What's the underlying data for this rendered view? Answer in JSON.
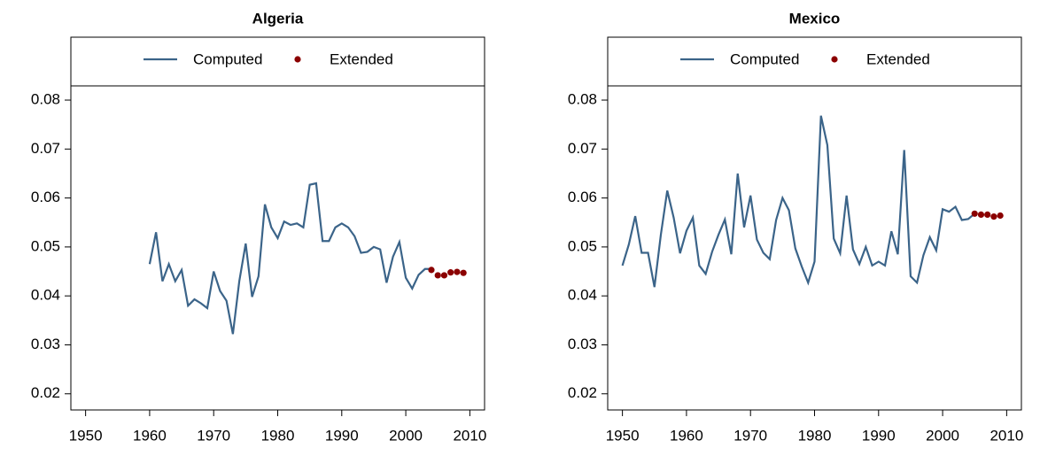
{
  "chart_data": [
    {
      "type": "line",
      "title": "Algeria",
      "x": [
        1960,
        1961,
        1962,
        1963,
        1964,
        1965,
        1966,
        1967,
        1968,
        1969,
        1970,
        1971,
        1972,
        1973,
        1974,
        1975,
        1976,
        1977,
        1978,
        1979,
        1980,
        1981,
        1982,
        1983,
        1984,
        1985,
        1986,
        1987,
        1988,
        1989,
        1990,
        1991,
        1992,
        1993,
        1994,
        1995,
        1996,
        1997,
        1998,
        1999,
        2000,
        2001,
        2002,
        2003,
        2004
      ],
      "series": [
        {
          "name": "Computed",
          "color": "#3b6489",
          "values": [
            0.0465,
            0.053,
            0.043,
            0.0465,
            0.043,
            0.0453,
            0.038,
            0.0393,
            0.0385,
            0.0375,
            0.045,
            0.041,
            0.039,
            0.0322,
            0.043,
            0.0507,
            0.0398,
            0.044,
            0.0587,
            0.054,
            0.0518,
            0.0552,
            0.0545,
            0.0548,
            0.054,
            0.0627,
            0.063,
            0.0512,
            0.0512,
            0.054,
            0.0548,
            0.054,
            0.0522,
            0.0488,
            0.049,
            0.05,
            0.0495,
            0.0427,
            0.048,
            0.051,
            0.0437,
            0.0415,
            0.0443,
            0.0455,
            0.0455
          ]
        },
        {
          "name": "Extended",
          "color": "#8b0000",
          "x": [
            2004,
            2005,
            2006,
            2007,
            2008,
            2009
          ],
          "values": [
            0.0453,
            0.0442,
            0.0442,
            0.0448,
            0.0449,
            0.0447
          ]
        }
      ],
      "xlim": [
        1947.7,
        2012.3
      ],
      "xticks": [
        1950,
        1960,
        1970,
        1980,
        1990,
        2000,
        2010
      ],
      "ylim": [
        0.0167,
        0.0829
      ],
      "yticks": [
        0.02,
        0.03,
        0.04,
        0.05,
        0.06,
        0.07,
        0.08
      ]
    },
    {
      "type": "line",
      "title": "Mexico",
      "x": [
        1950,
        1951,
        1952,
        1953,
        1954,
        1955,
        1956,
        1957,
        1958,
        1959,
        1960,
        1961,
        1962,
        1963,
        1964,
        1965,
        1966,
        1967,
        1968,
        1969,
        1970,
        1971,
        1972,
        1973,
        1974,
        1975,
        1976,
        1977,
        1978,
        1979,
        1980,
        1981,
        1982,
        1983,
        1984,
        1985,
        1986,
        1987,
        1988,
        1989,
        1990,
        1991,
        1992,
        1993,
        1994,
        1995,
        1996,
        1997,
        1998,
        1999,
        2000,
        2001,
        2002,
        2003,
        2004,
        2005
      ],
      "series": [
        {
          "name": "Computed",
          "color": "#3b6489",
          "values": [
            0.0462,
            0.0505,
            0.0563,
            0.0488,
            0.0488,
            0.0418,
            0.0525,
            0.0615,
            0.056,
            0.0487,
            0.0533,
            0.056,
            0.0462,
            0.0445,
            0.049,
            0.0525,
            0.0556,
            0.0485,
            0.065,
            0.054,
            0.0605,
            0.0515,
            0.0488,
            0.0475,
            0.0555,
            0.06,
            0.0575,
            0.0497,
            0.046,
            0.0427,
            0.047,
            0.0768,
            0.0708,
            0.0517,
            0.0487,
            0.0605,
            0.0495,
            0.0465,
            0.05,
            0.0462,
            0.047,
            0.0462,
            0.0532,
            0.0485,
            0.0698,
            0.044,
            0.0427,
            0.0483,
            0.052,
            0.0493,
            0.0577,
            0.0572,
            0.0582,
            0.0555,
            0.0557,
            0.0568
          ]
        },
        {
          "name": "Extended",
          "color": "#8b0000",
          "x": [
            2005,
            2006,
            2007,
            2008,
            2009
          ],
          "values": [
            0.0568,
            0.0566,
            0.0566,
            0.0562,
            0.0564
          ]
        }
      ],
      "xlim": [
        1947.7,
        2012.3
      ],
      "xticks": [
        1950,
        1960,
        1970,
        1980,
        1990,
        2000,
        2010
      ],
      "ylim": [
        0.0167,
        0.0829
      ],
      "yticks": [
        0.02,
        0.03,
        0.04,
        0.05,
        0.06,
        0.07,
        0.08
      ]
    }
  ]
}
